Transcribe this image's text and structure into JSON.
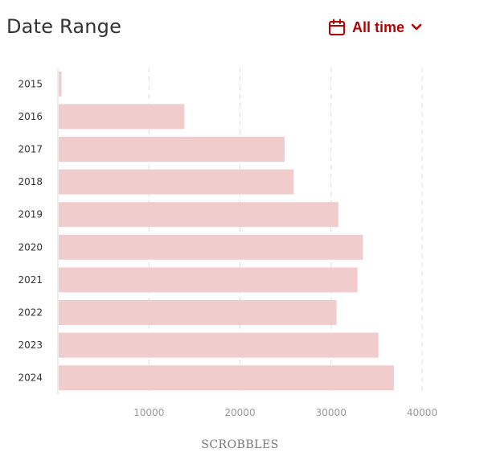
{
  "header": {
    "title": "Date Range",
    "date_range_label": "All time",
    "accent_color": "#b90000"
  },
  "icons": {
    "calendar": "calendar-icon",
    "chevron": "chevron-down-icon"
  },
  "chart_data": {
    "type": "bar",
    "orientation": "horizontal",
    "categories": [
      "2015",
      "2016",
      "2017",
      "2018",
      "2019",
      "2020",
      "2021",
      "2022",
      "2023",
      "2024"
    ],
    "values": [
      400,
      13900,
      24900,
      25900,
      30800,
      33500,
      32900,
      30600,
      35200,
      36900
    ],
    "xlabel": "SCROBBLES",
    "ylabel": "",
    "xlim": [
      0,
      40000
    ],
    "xticks": [
      10000,
      20000,
      30000,
      40000
    ],
    "grid": true,
    "bar_color": "#f0cccc"
  }
}
